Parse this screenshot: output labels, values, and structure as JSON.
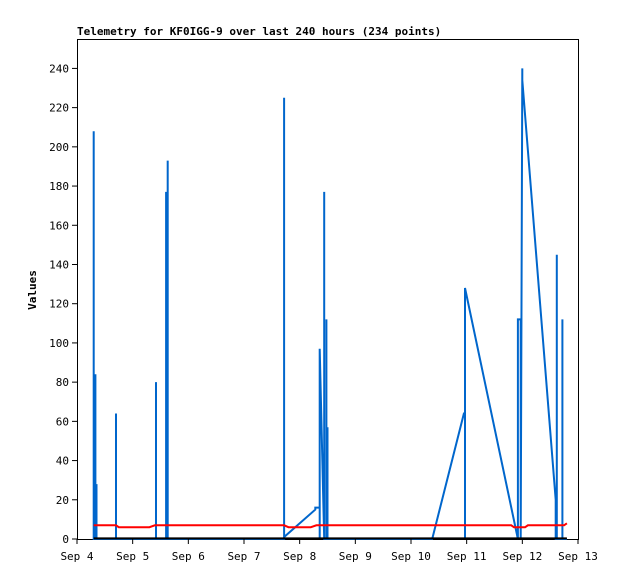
{
  "chart_data": {
    "type": "line",
    "title": "Telemetry for KF0IGG-9 over last 240 hours (234 points)",
    "xlabel": "",
    "ylabel": "Values",
    "xlim": [
      4.0,
      13.0
    ],
    "ylim": [
      0,
      255
    ],
    "x_ticks": [
      {
        "value": 4,
        "label": "Sep 4"
      },
      {
        "value": 5,
        "label": "Sep 5"
      },
      {
        "value": 6,
        "label": "Sep 6"
      },
      {
        "value": 7,
        "label": "Sep 7"
      },
      {
        "value": 8,
        "label": "Sep 8"
      },
      {
        "value": 9,
        "label": "Sep 9"
      },
      {
        "value": 10,
        "label": "Sep 10"
      },
      {
        "value": 11,
        "label": "Sep 11"
      },
      {
        "value": 12,
        "label": "Sep 12"
      },
      {
        "value": 13,
        "label": "Sep 13"
      }
    ],
    "y_ticks": [
      0,
      20,
      40,
      60,
      80,
      100,
      120,
      140,
      160,
      180,
      200,
      220,
      240
    ],
    "grid": false,
    "series": [
      {
        "color": "#0066cc",
        "x": [
          4.3,
          4.3,
          4.3,
          4.33,
          4.33,
          4.33,
          4.35,
          4.35,
          4.35,
          4.7,
          4.7,
          4.7,
          5.42,
          5.42,
          5.42,
          5.6,
          5.6,
          5.6,
          5.63,
          5.63,
          5.63,
          7.72,
          7.72,
          7.72,
          8.28,
          8.28,
          8.36,
          8.36,
          8.36,
          8.44,
          8.44,
          8.44,
          8.48,
          8.48,
          8.48,
          8.5,
          8.5,
          8.5,
          10.38,
          10.95,
          10.97,
          10.97,
          10.97,
          11.92,
          11.92,
          11.97,
          11.97,
          12.0,
          12.0,
          12.6,
          12.6,
          12.62,
          12.62,
          12.62,
          12.72,
          12.72,
          12.72,
          12.8
        ],
        "y": [
          0,
          208,
          0,
          0,
          84,
          0,
          0,
          28,
          0,
          0,
          64,
          0,
          0,
          80,
          0,
          0,
          177,
          0,
          0,
          193,
          0,
          0,
          225,
          1,
          15,
          16,
          16,
          0,
          97,
          0,
          177,
          0,
          0,
          112,
          0,
          0,
          57,
          0,
          0,
          64,
          64,
          0,
          128,
          0,
          112,
          112,
          0,
          240,
          234,
          20,
          0,
          0,
          145,
          0,
          0,
          112,
          0,
          0
        ]
      },
      {
        "color": "#ff0000",
        "x": [
          4.3,
          4.7,
          4.75,
          5.3,
          5.4,
          7.72,
          7.8,
          8.2,
          8.3,
          11.8,
          11.85,
          12.05,
          12.1,
          12.5,
          12.55,
          12.75,
          12.8
        ],
        "y": [
          7,
          7,
          6,
          6,
          7,
          7,
          6,
          6,
          7,
          7,
          6,
          6,
          7,
          7,
          7,
          7,
          8
        ]
      },
      {
        "color": "#000000",
        "x": [
          4.3,
          12.8
        ],
        "y": [
          0.3,
          0.3
        ]
      }
    ]
  }
}
